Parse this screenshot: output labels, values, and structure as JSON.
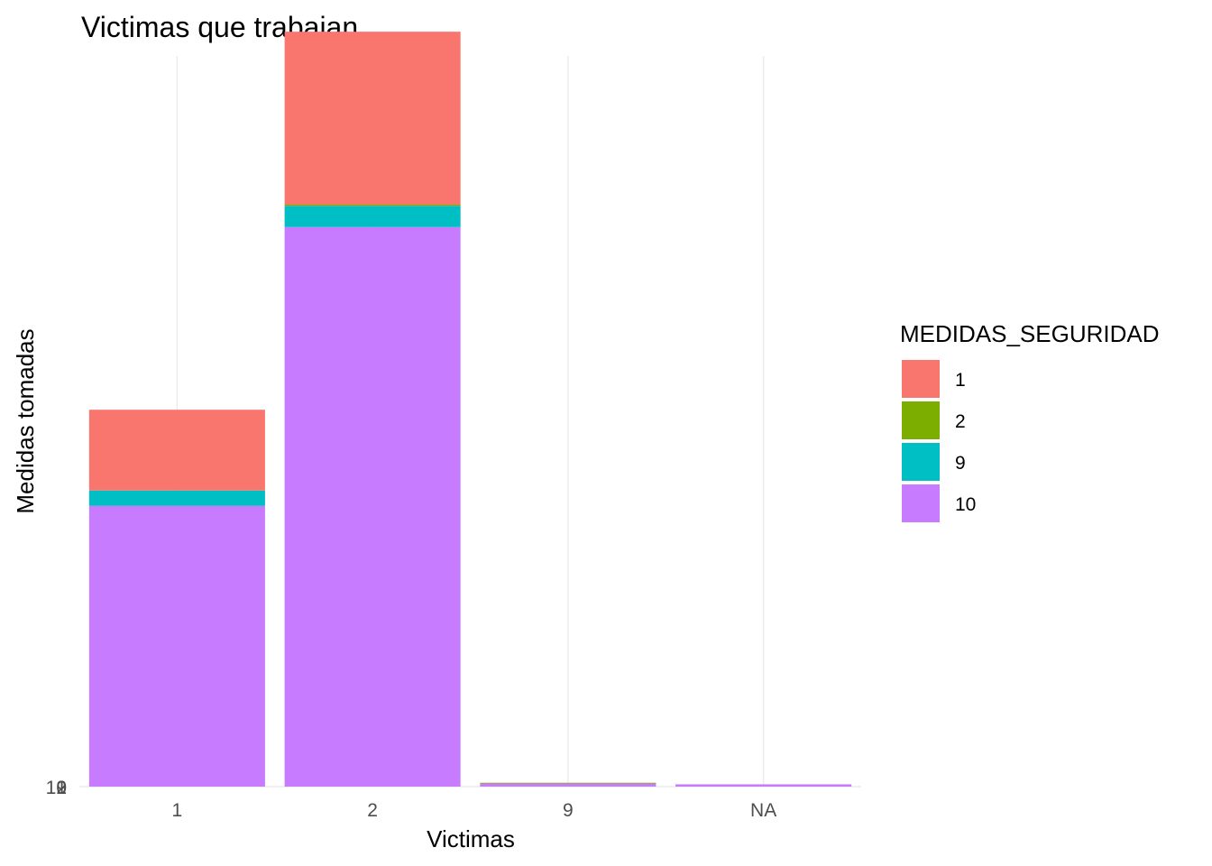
{
  "chart_data": {
    "type": "bar",
    "stacked": true,
    "title": "Victimas que trabajan",
    "xlabel": "Victimas",
    "ylabel": "Medidas tomadas",
    "categories": [
      "1",
      "2",
      "9",
      "NA"
    ],
    "ylim": [
      0,
      1900
    ],
    "y_tick_labels": [
      "10",
      "9",
      "2",
      "1"
    ],
    "grid": "vertical",
    "legend": {
      "title": "MEDIDAS_SEGURIDAD",
      "position": "right",
      "entries": [
        "1",
        "2",
        "9",
        "10"
      ]
    },
    "series": [
      {
        "name": "10",
        "color": "#C77CFF",
        "values": [
          730,
          1455,
          8,
          6
        ]
      },
      {
        "name": "9",
        "color": "#00BFC4",
        "values": [
          40,
          55,
          0,
          0
        ]
      },
      {
        "name": "2",
        "color": "#7CAE00",
        "values": [
          0,
          3,
          2,
          0
        ]
      },
      {
        "name": "1",
        "color": "#F8766D",
        "values": [
          210,
          450,
          0,
          0
        ]
      }
    ]
  }
}
